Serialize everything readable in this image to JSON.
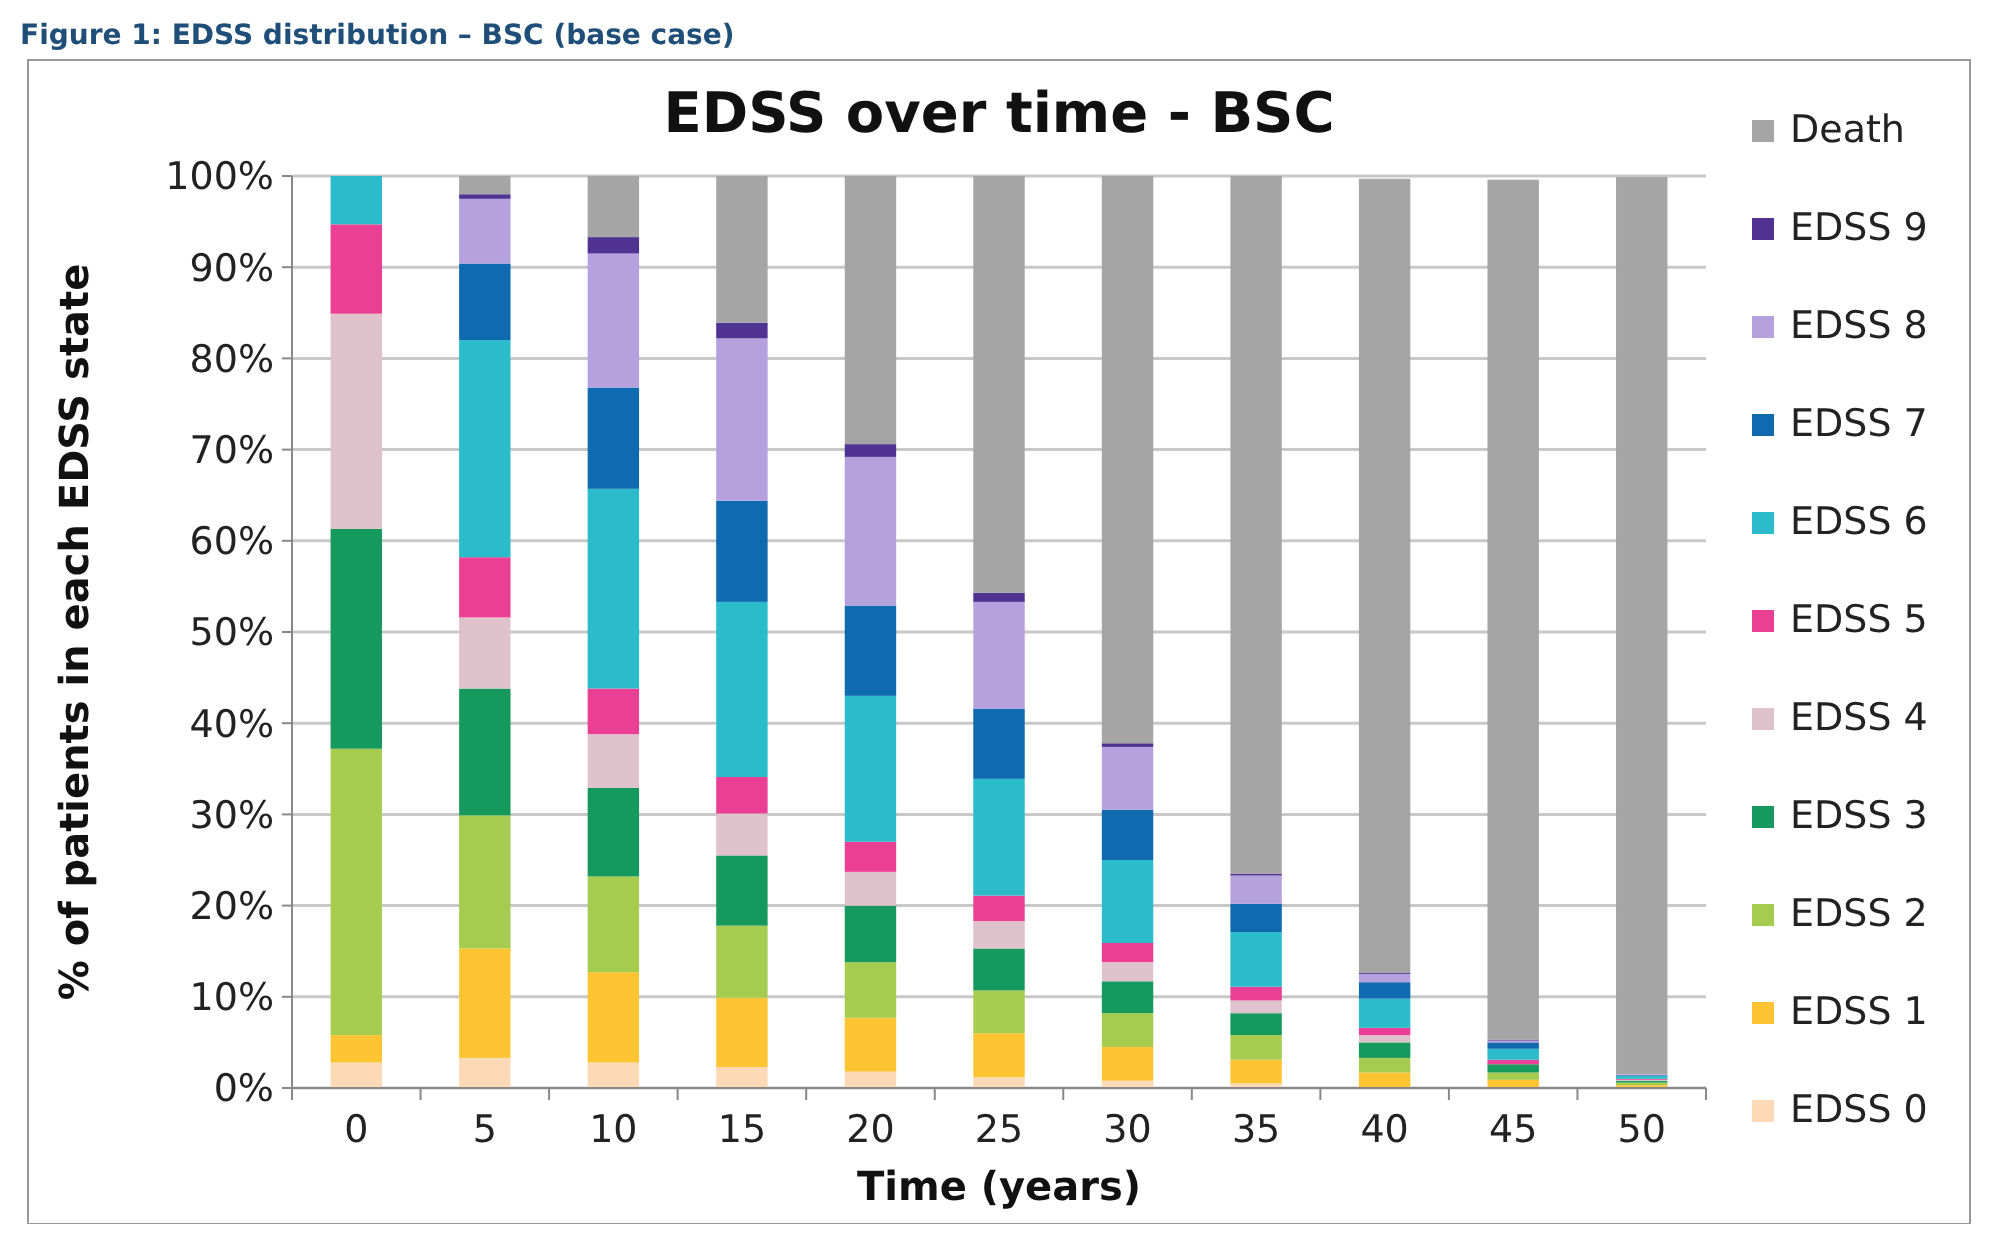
{
  "chart_data": {
    "type": "bar",
    "stacked": true,
    "title": "EDSS over time - BSC",
    "xlabel": "Time (years)",
    "ylabel": "% of patients in each EDSS state",
    "annotations": [
      "Figure 1: EDSS distribution – BSC (base case)"
    ],
    "categories": [
      "0",
      "5",
      "10",
      "15",
      "20",
      "25",
      "30",
      "35",
      "40",
      "45",
      "50"
    ],
    "series": [
      {
        "name": "EDSS 0",
        "color": "#fdd9b5",
        "values": [
          2.8,
          3.3,
          2.8,
          2.3,
          1.8,
          1.2,
          0.8,
          0.5,
          null,
          null,
          null
        ]
      },
      {
        "name": "EDSS 1",
        "color": "#fec432",
        "values": [
          3.0,
          12.0,
          9.9,
          7.6,
          5.9,
          4.8,
          3.7,
          2.6,
          1.7,
          0.9,
          0.3
        ]
      },
      {
        "name": "EDSS 2",
        "color": "#a6cc4f",
        "values": [
          31.4,
          14.6,
          10.5,
          7.9,
          6.1,
          4.7,
          3.7,
          2.7,
          1.6,
          0.8,
          0.3
        ]
      },
      {
        "name": "EDSS 3",
        "color": "#16995c",
        "values": [
          24.1,
          13.9,
          9.7,
          7.7,
          6.2,
          4.6,
          3.5,
          2.4,
          1.7,
          0.9,
          0.2
        ]
      },
      {
        "name": "EDSS 4",
        "color": "#e0c2cc",
        "values": [
          23.6,
          7.8,
          5.9,
          4.6,
          3.7,
          3.0,
          2.1,
          1.4,
          0.8,
          null,
          0.1
        ]
      },
      {
        "name": "EDSS 5",
        "color": "#ea3f94",
        "values": [
          9.8,
          6.6,
          5.0,
          4.0,
          3.3,
          2.8,
          2.1,
          1.5,
          0.8,
          0.5,
          0.1
        ]
      },
      {
        "name": "EDSS 6",
        "color": "#2bbccc",
        "values": [
          5.3,
          23.8,
          21.9,
          19.2,
          16.0,
          12.8,
          9.1,
          6.0,
          3.2,
          1.2,
          0.3
        ]
      },
      {
        "name": "EDSS 7",
        "color": "#0f6aaf",
        "values": [
          0,
          8.4,
          11.1,
          11.1,
          9.9,
          7.7,
          5.5,
          3.1,
          1.8,
          0.7,
          0.1
        ]
      },
      {
        "name": "EDSS 8",
        "color": "#b5a1de",
        "values": [
          0,
          7.1,
          14.7,
          17.8,
          16.3,
          11.7,
          6.9,
          3.1,
          0.9,
          0.2,
          0.1
        ]
      },
      {
        "name": "EDSS 9",
        "color": "#4f3292",
        "values": [
          0,
          0.5,
          1.8,
          1.7,
          1.4,
          1.0,
          0.4,
          0.2,
          0.1,
          0.1,
          0
        ]
      },
      {
        "name": "Death",
        "color": "#a5a5a5",
        "values": [
          0,
          2.0,
          6.7,
          16.1,
          29.4,
          45.7,
          62.2,
          76.5,
          87.1,
          94.3,
          98.4
        ]
      }
    ],
    "ylim": [
      0,
      100
    ],
    "yticks": [
      {
        "value": 0,
        "label": "0%"
      },
      {
        "value": 10,
        "label": "10%"
      },
      {
        "value": 20,
        "label": "20%"
      },
      {
        "value": 30,
        "label": "30%"
      },
      {
        "value": 40,
        "label": "40%"
      },
      {
        "value": 50,
        "label": "50%"
      },
      {
        "value": 60,
        "label": "60%"
      },
      {
        "value": 70,
        "label": "70%"
      },
      {
        "value": 80,
        "label": "80%"
      },
      {
        "value": 90,
        "label": "90%"
      },
      {
        "value": 100,
        "label": "100%"
      }
    ],
    "grid": "y",
    "legend": "right"
  }
}
